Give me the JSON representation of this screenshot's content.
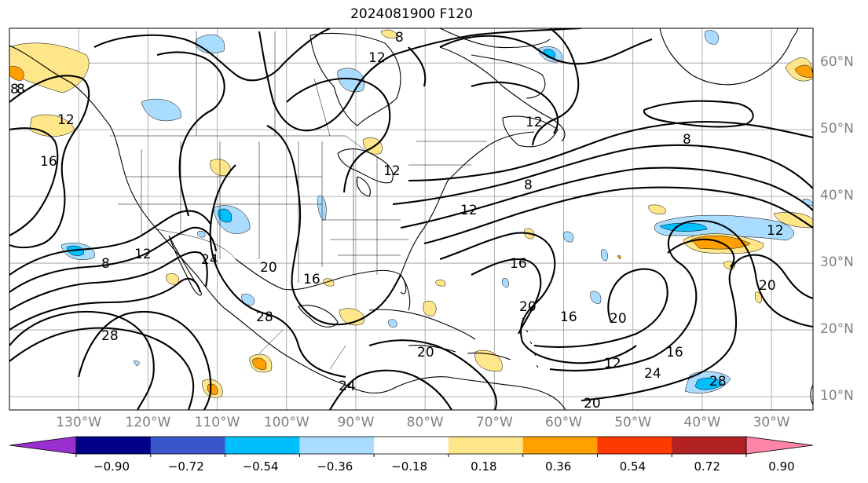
{
  "title": "2024081900 F120",
  "latitude_labels": [
    "60°N",
    "50°N",
    "40°N",
    "30°N",
    "20°N",
    "10°N"
  ],
  "longitude_labels": [
    "130°W",
    "120°W",
    "110°W",
    "100°W",
    "90°W",
    "80°W",
    "70°W",
    "60°W",
    "50°W",
    "40°W",
    "30°W"
  ],
  "contour_labels": [
    "8",
    "8",
    "12",
    "12",
    "16",
    "12",
    "8",
    "8",
    "12",
    "16",
    "12",
    "16",
    "28",
    "28",
    "20",
    "24",
    "24",
    "20",
    "16",
    "20",
    "12",
    "16",
    "20",
    "24",
    "28",
    "20",
    "12",
    "20",
    "8",
    "8",
    "12"
  ],
  "colorbar": {
    "ticks": [
      "−0.90",
      "−0.72",
      "−0.54",
      "−0.36",
      "−0.18",
      "0.18",
      "0.36",
      "0.54",
      "0.72",
      "0.90"
    ],
    "colors": [
      "#9b30d0",
      "#00008b",
      "#3a57c9",
      "#00bfff",
      "#aadcff",
      "#ffffff",
      "#ffe68a",
      "#ffa000",
      "#ff3a00",
      "#b22222",
      "#ff85a8"
    ]
  }
}
